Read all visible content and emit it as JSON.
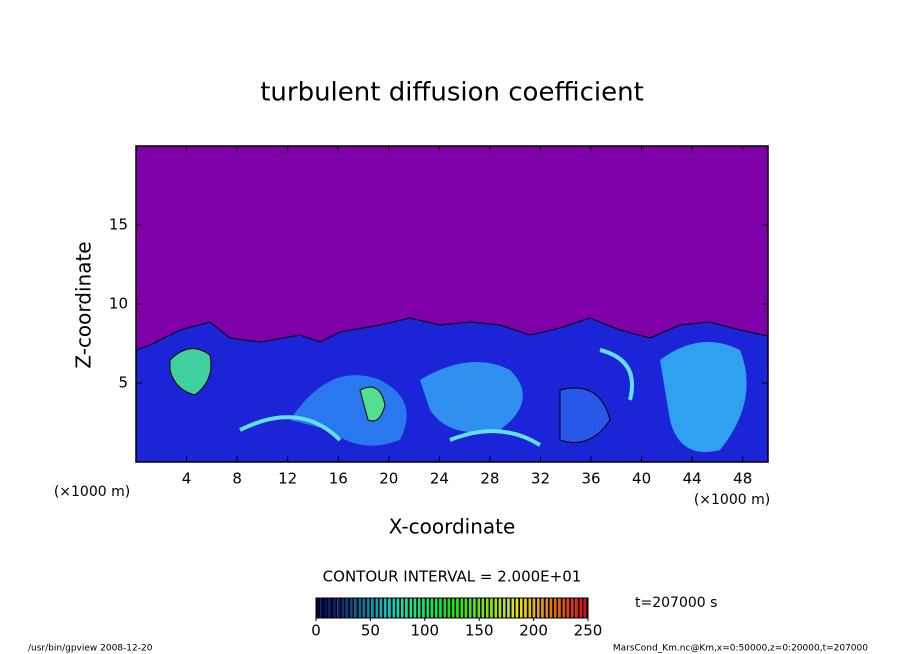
{
  "chart_data": {
    "type": "contour",
    "title": "turbulent diffusion coefficient",
    "xlabel": "X-coordinate",
    "ylabel": "Z-coordinate",
    "x_unit": "(×1000 m)",
    "xlim": [
      0,
      50
    ],
    "xticks": [
      4,
      8,
      12,
      16,
      20,
      24,
      28,
      32,
      36,
      40,
      44,
      48
    ],
    "ylim": [
      0,
      20
    ],
    "yticks": [
      5,
      10,
      15
    ],
    "contour_interval": "CONTOUR INTERVAL = 2.000E+01",
    "time": "t=207000 s",
    "colorbar": {
      "lim": [
        0,
        250
      ],
      "ticks": [
        0,
        50,
        100,
        150,
        200,
        250
      ]
    },
    "footer_left": "/usr/bin/gpview   2008-12-20",
    "footer_right": "MarsCond_Km.nc@Km,x=0:50000,z=0:20000,t=207000"
  }
}
